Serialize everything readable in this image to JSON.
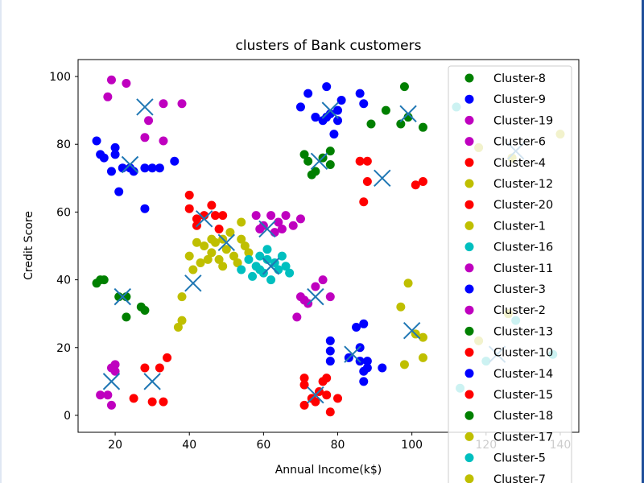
{
  "chart_data": {
    "type": "scatter",
    "title": "clusters of Bank customers",
    "xlabel": "Annual Income(k$)",
    "ylabel": "Credit Score",
    "xlim": [
      10,
      145
    ],
    "ylim": [
      -5,
      105
    ],
    "xticks": [
      20,
      40,
      60,
      80,
      100,
      120,
      140
    ],
    "yticks": [
      0,
      20,
      40,
      60,
      80,
      100
    ],
    "grid": false,
    "legend_position": "right",
    "centroid_color": "#1f77b4",
    "series": [
      {
        "name": "Cluster-8",
        "color": "#008000",
        "points": [
          [
            71,
            77
          ],
          [
            72,
            75
          ],
          [
            74,
            72
          ],
          [
            76,
            76
          ],
          [
            78,
            78
          ],
          [
            78,
            74
          ],
          [
            73,
            71
          ]
        ]
      },
      {
        "name": "Cluster-9",
        "color": "#0000ff",
        "points": [
          [
            70,
            91
          ],
          [
            72,
            95
          ],
          [
            74,
            88
          ],
          [
            77,
            97
          ],
          [
            76,
            87
          ],
          [
            78,
            89
          ],
          [
            80,
            90
          ],
          [
            81,
            93
          ],
          [
            79,
            83
          ],
          [
            86,
            95
          ],
          [
            87,
            92
          ],
          [
            80,
            87
          ],
          [
            77,
            88
          ]
        ]
      },
      {
        "name": "Cluster-19",
        "color": "#bf00bf",
        "points": [
          [
            18,
            94
          ],
          [
            19,
            99
          ],
          [
            23,
            98
          ],
          [
            29,
            87
          ],
          [
            28,
            82
          ],
          [
            33,
            92
          ],
          [
            38,
            92
          ],
          [
            33,
            81
          ]
        ]
      },
      {
        "name": "Cluster-6",
        "color": "#bf00bf",
        "points": [
          [
            58,
            59
          ],
          [
            60,
            56
          ],
          [
            62,
            59
          ],
          [
            64,
            57
          ],
          [
            66,
            59
          ],
          [
            68,
            56
          ],
          [
            70,
            58
          ],
          [
            59,
            55
          ],
          [
            63,
            54
          ],
          [
            65,
            55
          ]
        ]
      },
      {
        "name": "Cluster-4",
        "color": "#ff0000",
        "points": [
          [
            86,
            75
          ],
          [
            88,
            75
          ],
          [
            87,
            63
          ],
          [
            88,
            69
          ],
          [
            101,
            68
          ],
          [
            103,
            69
          ]
        ]
      },
      {
        "name": "Cluster-12",
        "color": "#bfbf00",
        "points": [
          [
            118,
            79
          ],
          [
            127,
            76
          ],
          [
            140,
            83
          ]
        ]
      },
      {
        "name": "Cluster-20",
        "color": "#ff0000",
        "points": [
          [
            40,
            65
          ],
          [
            40,
            61
          ],
          [
            42,
            58
          ],
          [
            44,
            59
          ],
          [
            46,
            62
          ],
          [
            47,
            59
          ],
          [
            48,
            55
          ],
          [
            49,
            59
          ],
          [
            42,
            56
          ]
        ]
      },
      {
        "name": "Cluster-1",
        "color": "#bfbf00",
        "points": [
          [
            40,
            47
          ],
          [
            41,
            43
          ],
          [
            43,
            45
          ],
          [
            44,
            50
          ],
          [
            46,
            48
          ],
          [
            47,
            51
          ],
          [
            48,
            46
          ],
          [
            49,
            52
          ],
          [
            50,
            49
          ],
          [
            51,
            54
          ],
          [
            52,
            47
          ],
          [
            54,
            57
          ],
          [
            54,
            52
          ],
          [
            55,
            50
          ],
          [
            56,
            48
          ],
          [
            46,
            52
          ],
          [
            42,
            51
          ],
          [
            45,
            46
          ],
          [
            49,
            44
          ],
          [
            53,
            45
          ]
        ]
      },
      {
        "name": "Cluster-16",
        "color": "#00bfbf",
        "points": [
          [
            54,
            43
          ],
          [
            56,
            46
          ],
          [
            57,
            41
          ],
          [
            58,
            44
          ],
          [
            59,
            47
          ],
          [
            60,
            42
          ],
          [
            61,
            49
          ],
          [
            62,
            40
          ],
          [
            63,
            45
          ],
          [
            64,
            43
          ],
          [
            65,
            47
          ],
          [
            66,
            44
          ],
          [
            67,
            42
          ],
          [
            61,
            46
          ],
          [
            59,
            43
          ]
        ]
      },
      {
        "name": "Cluster-11",
        "color": "#bf00bf",
        "points": [
          [
            70,
            35
          ],
          [
            71,
            34
          ],
          [
            74,
            38
          ],
          [
            76,
            40
          ],
          [
            78,
            35
          ],
          [
            69,
            29
          ],
          [
            72,
            33
          ]
        ]
      },
      {
        "name": "Cluster-3",
        "color": "#0000ff",
        "points": [
          [
            15,
            81
          ],
          [
            16,
            77
          ],
          [
            17,
            76
          ],
          [
            19,
            72
          ],
          [
            20,
            79
          ],
          [
            20,
            77
          ],
          [
            22,
            73
          ],
          [
            21,
            66
          ],
          [
            24,
            73
          ],
          [
            28,
            73
          ],
          [
            30,
            73
          ],
          [
            32,
            73
          ],
          [
            36,
            75
          ],
          [
            28,
            61
          ],
          [
            25,
            72
          ]
        ]
      },
      {
        "name": "Cluster-2",
        "color": "#bf00bf",
        "points": [
          [
            16,
            6
          ],
          [
            18,
            6
          ],
          [
            19,
            14
          ],
          [
            20,
            15
          ],
          [
            19,
            3
          ],
          [
            20,
            13
          ]
        ]
      },
      {
        "name": "Cluster-13",
        "color": "#008000",
        "points": [
          [
            15,
            39
          ],
          [
            16,
            40
          ],
          [
            17,
            40
          ],
          [
            21,
            35
          ],
          [
            23,
            35
          ],
          [
            23,
            29
          ],
          [
            27,
            32
          ],
          [
            28,
            31
          ]
        ]
      },
      {
        "name": "Cluster-10",
        "color": "#ff0000",
        "points": [
          [
            25,
            5
          ],
          [
            28,
            14
          ],
          [
            30,
            4
          ],
          [
            32,
            14
          ],
          [
            33,
            4
          ],
          [
            34,
            17
          ]
        ]
      },
      {
        "name": "Cluster-14",
        "color": "#0000ff",
        "points": [
          [
            78,
            22
          ],
          [
            78,
            19
          ],
          [
            78,
            16
          ],
          [
            83,
            17
          ],
          [
            85,
            26
          ],
          [
            86,
            20
          ],
          [
            87,
            27
          ],
          [
            87,
            13
          ],
          [
            87,
            10
          ],
          [
            88,
            16
          ],
          [
            88,
            14
          ],
          [
            92,
            14
          ],
          [
            86,
            16
          ]
        ]
      },
      {
        "name": "Cluster-15",
        "color": "#ff0000",
        "points": [
          [
            71,
            11
          ],
          [
            71,
            9
          ],
          [
            73,
            5
          ],
          [
            75,
            7
          ],
          [
            76,
            10
          ],
          [
            71,
            3
          ],
          [
            74,
            4
          ],
          [
            77,
            11
          ],
          [
            77,
            6
          ],
          [
            78,
            1
          ],
          [
            80,
            5
          ]
        ]
      },
      {
        "name": "Cluster-18",
        "color": "#008000",
        "points": [
          [
            98,
            97
          ],
          [
            93,
            90
          ],
          [
            97,
            86
          ],
          [
            99,
            88
          ],
          [
            103,
            85
          ],
          [
            89,
            86
          ]
        ]
      },
      {
        "name": "Cluster-17",
        "color": "#bfbf00",
        "points": [
          [
            97,
            32
          ],
          [
            98,
            15
          ],
          [
            99,
            39
          ],
          [
            101,
            24
          ],
          [
            103,
            23
          ],
          [
            103,
            17
          ],
          [
            38,
            28
          ],
          [
            37,
            26
          ],
          [
            38,
            35
          ]
        ]
      },
      {
        "name": "Cluster-5",
        "color": "#00bfbf",
        "points": [
          [
            112,
            91
          ],
          [
            113,
            8
          ],
          [
            120,
            16
          ],
          [
            128,
            28
          ],
          [
            138,
            18
          ]
        ]
      },
      {
        "name": "Cluster-7",
        "color": "#bfbf00",
        "points": [
          [
            118,
            22
          ],
          [
            126,
            30
          ]
        ]
      }
    ],
    "centroids": [
      [
        28,
        91
      ],
      [
        24,
        74
      ],
      [
        44,
        58
      ],
      [
        50,
        51
      ],
      [
        41,
        39
      ],
      [
        22,
        35
      ],
      [
        19,
        10
      ],
      [
        30,
        10
      ],
      [
        62,
        44
      ],
      [
        61,
        55
      ],
      [
        74,
        35
      ],
      [
        74,
        6
      ],
      [
        84,
        18
      ],
      [
        75,
        75
      ],
      [
        78,
        90
      ],
      [
        92,
        70
      ],
      [
        99,
        89
      ],
      [
        128,
        78
      ],
      [
        100,
        25
      ],
      [
        123,
        18
      ]
    ]
  }
}
